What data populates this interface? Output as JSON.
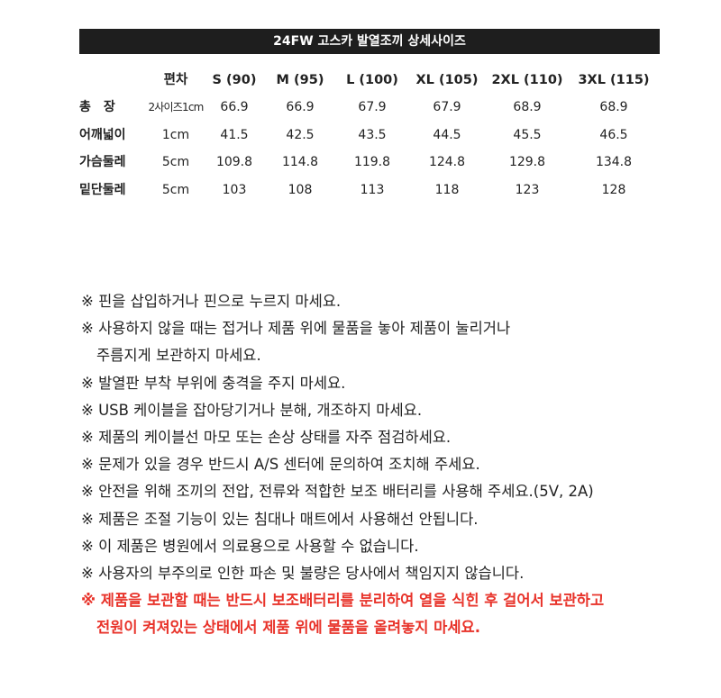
{
  "title": "24FW 고스카 발열조끼 상세사이즈",
  "table": {
    "headers": [
      "편차",
      "S (90)",
      "M (95)",
      "L (100)",
      "XL (105)",
      "2XL (110)",
      "3XL (115)"
    ],
    "rows": [
      {
        "label": "총　장",
        "values": [
          "2사이즈1cm",
          "66.9",
          "66.9",
          "67.9",
          "67.9",
          "68.9",
          "68.9"
        ]
      },
      {
        "label": "어깨넓이",
        "values": [
          "1cm",
          "41.5",
          "42.5",
          "43.5",
          "44.5",
          "45.5",
          "46.5"
        ]
      },
      {
        "label": "가슴둘레",
        "values": [
          "5cm",
          "109.8",
          "114.8",
          "119.8",
          "124.8",
          "129.8",
          "134.8"
        ]
      },
      {
        "label": "밑단둘레",
        "values": [
          "5cm",
          "103",
          "108",
          "113",
          "118",
          "123",
          "128"
        ]
      }
    ]
  },
  "notes": [
    {
      "text": "※ 핀을 삽입하거나 핀으로 누르지 마세요.",
      "style": ""
    },
    {
      "text": "※ 사용하지 않을 때는 접거나 제품 위에 물품을 놓아 제품이 눌리거나",
      "style": ""
    },
    {
      "text": "주름지게 보관하지 마세요.",
      "style": "indent"
    },
    {
      "text": "※ 발열판 부착 부위에 충격을 주지 마세요.",
      "style": ""
    },
    {
      "text": "※ USB 케이블을 잡아당기거나 분해, 개조하지 마세요.",
      "style": ""
    },
    {
      "text": "※ 제품의 케이블선 마모 또는 손상 상태를 자주 점검하세요.",
      "style": ""
    },
    {
      "text": "※ 문제가 있을 경우 반드시 A/S 센터에 문의하여 조치해 주세요.",
      "style": ""
    },
    {
      "text": "※ 안전을 위해 조끼의 전압, 전류와 적합한 보조 배터리를 사용해 주세요.(5V, 2A)",
      "style": ""
    },
    {
      "text": "※ 제품은 조절 기능이 있는 침대나 매트에서 사용해선 안됩니다.",
      "style": ""
    },
    {
      "text": "※ 이 제품은 병원에서 의료용으로 사용할 수 없습니다.",
      "style": ""
    },
    {
      "text": "※ 사용자의 부주의로 인한 파손 및 불량은 당사에서 책임지지 않습니다.",
      "style": ""
    },
    {
      "text": "※ 제품을 보관할 때는 반드시 보조배터리를 분리하여 열을 식힌 후 걸어서 보관하고",
      "style": "red"
    },
    {
      "text": "전원이 켜져있는 상태에서 제품 위에 물품을 올려놓지 마세요.",
      "style": "red indent"
    }
  ],
  "colors": {
    "header_bg": "#1e1e1e",
    "warning": "#e8332a"
  }
}
